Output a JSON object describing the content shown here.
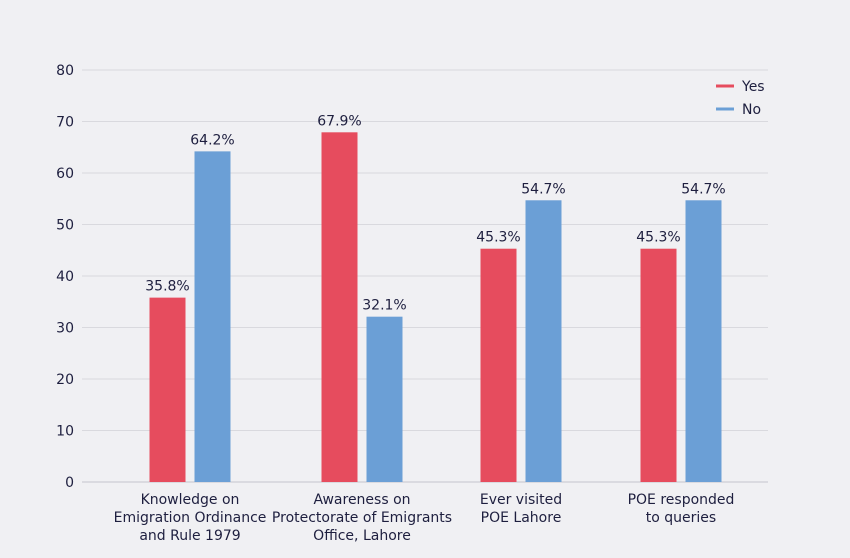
{
  "chart_data": {
    "type": "bar",
    "categories": [
      [
        "Knowledge on",
        "Emigration Ordinance",
        "and Rule 1979"
      ],
      [
        "Awareness on",
        "Protectorate of Emigrants",
        "Office, Lahore"
      ],
      [
        "Ever visited",
        "POE Lahore"
      ],
      [
        "POE responded",
        "to queries"
      ]
    ],
    "series": [
      {
        "name": "Yes",
        "color": "#e64c5e",
        "values": [
          35.8,
          67.9,
          45.3,
          45.3
        ],
        "labels": [
          "35.8%",
          "67.9%",
          "45.3%",
          "45.3%"
        ]
      },
      {
        "name": "No",
        "color": "#6b9fd6",
        "values": [
          64.2,
          32.1,
          54.7,
          54.7
        ],
        "labels": [
          "64.2%",
          "32.1%",
          "54.7%",
          "54.7%"
        ]
      }
    ],
    "ylim": [
      0,
      80
    ],
    "yticks": [
      0,
      10,
      20,
      30,
      40,
      50,
      60,
      70,
      80
    ],
    "grid": true,
    "legend_position": "top-right"
  }
}
